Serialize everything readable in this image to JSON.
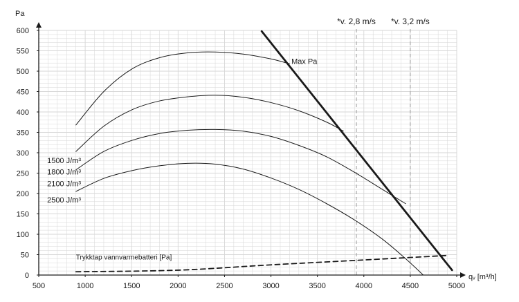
{
  "chart_data": {
    "type": "line",
    "ylabel": "Pa",
    "xlabel": "qᵥ [m³/h]",
    "xlim": [
      500,
      5000
    ],
    "ylim": [
      0,
      600
    ],
    "xticks": [
      500,
      1000,
      1500,
      2000,
      2500,
      3000,
      3500,
      4000,
      4500,
      5000
    ],
    "yticks": [
      0,
      50,
      100,
      150,
      200,
      250,
      300,
      350,
      400,
      450,
      500,
      550,
      600
    ],
    "grid": true,
    "series": [
      {
        "name": "2500 J/m³",
        "style": "thin",
        "label_at": [
          380,
          185
        ],
        "points": [
          [
            900,
            368
          ],
          [
            1200,
            450
          ],
          [
            1500,
            505
          ],
          [
            1800,
            533
          ],
          [
            2100,
            545
          ],
          [
            2400,
            547
          ],
          [
            2700,
            542
          ],
          [
            3000,
            530
          ],
          [
            3200,
            518
          ]
        ]
      },
      {
        "name": "2100 J/m³",
        "style": "thin",
        "label_at": [
          330,
          225
        ],
        "points": [
          [
            900,
            303
          ],
          [
            1200,
            365
          ],
          [
            1500,
            405
          ],
          [
            1800,
            427
          ],
          [
            2100,
            437
          ],
          [
            2400,
            441
          ],
          [
            2700,
            436
          ],
          [
            3000,
            423
          ],
          [
            3300,
            403
          ],
          [
            3600,
            375
          ],
          [
            3780,
            353
          ]
        ]
      },
      {
        "name": "1800 J/m³",
        "style": "thin",
        "label_at": [
          300,
          253
        ],
        "points": [
          [
            900,
            258
          ],
          [
            1200,
            303
          ],
          [
            1500,
            330
          ],
          [
            1800,
            347
          ],
          [
            2100,
            355
          ],
          [
            2400,
            357
          ],
          [
            2700,
            353
          ],
          [
            3000,
            340
          ],
          [
            3300,
            318
          ],
          [
            3600,
            290
          ],
          [
            3900,
            252
          ],
          [
            4200,
            210
          ],
          [
            4450,
            175
          ]
        ]
      },
      {
        "name": "1500 J/m³",
        "style": "thin",
        "label_at": [
          265,
          281
        ],
        "points": [
          [
            900,
            205
          ],
          [
            1200,
            237
          ],
          [
            1500,
            256
          ],
          [
            1800,
            268
          ],
          [
            2100,
            274
          ],
          [
            2400,
            272
          ],
          [
            2700,
            260
          ],
          [
            3000,
            238
          ],
          [
            3300,
            210
          ],
          [
            3600,
            175
          ],
          [
            3900,
            135
          ],
          [
            4200,
            88
          ],
          [
            4450,
            40
          ],
          [
            4640,
            0
          ]
        ]
      },
      {
        "name": "Max Pa",
        "style": "thick",
        "label_at": [
          3220,
          525
        ],
        "points": [
          [
            2900,
            598
          ],
          [
            4950,
            12
          ]
        ]
      },
      {
        "name": "Trykktap vannvarmebatteri [Pa]",
        "style": "dashed",
        "label_at": [
          900,
          45
        ],
        "points": [
          [
            900,
            8
          ],
          [
            2000,
            12
          ],
          [
            3000,
            25
          ],
          [
            4000,
            37
          ],
          [
            4900,
            48
          ]
        ]
      }
    ],
    "reference_lines": [
      {
        "x": 3920,
        "label": "*v. 2,8 m/s"
      },
      {
        "x": 4500,
        "label": "*v. 3,2 m/s"
      }
    ],
    "colors": {
      "curve": "#1a1a1a",
      "grid": "#d6d6d6",
      "axis": "#1a1a1a",
      "reference": "#9a9a9a"
    }
  }
}
